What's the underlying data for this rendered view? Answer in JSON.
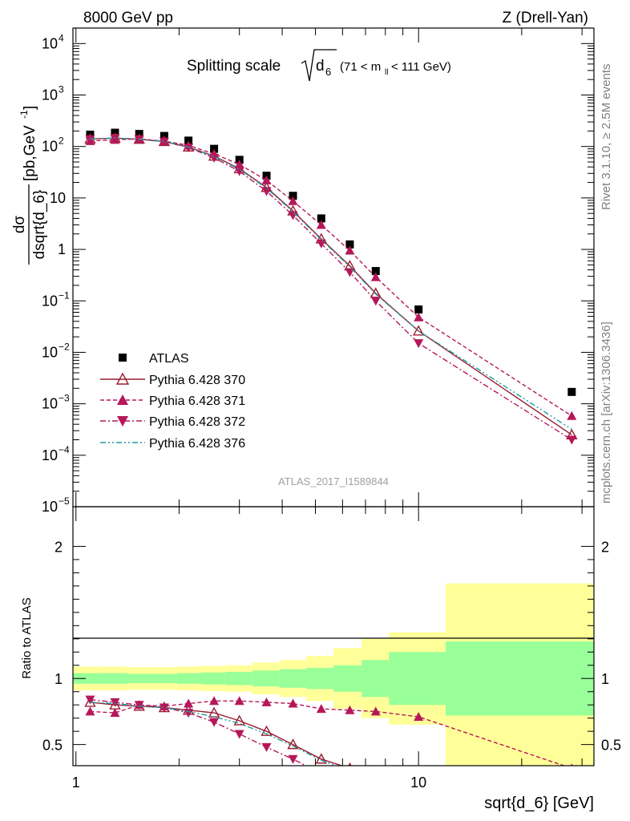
{
  "header": {
    "left": "8000 GeV pp",
    "right": "Z (Drell-Yan)"
  },
  "side_labels": {
    "rivet": "Rivet 3.1.10, ≥ 2.5M events",
    "mcplots": "mcplots.cern.ch [arXiv:1306.3436]"
  },
  "watermark": "ATLAS_2017_I1589844",
  "chart_data": [
    {
      "type": "scatter",
      "title_main": "Splitting scale",
      "title_sym": "d",
      "title_sub": "6",
      "title_range": "(71 < m",
      "title_range_sub": "ll",
      "title_range_end": " < 111 GeV)",
      "ylabel_num": "dσ",
      "ylabel_den": "dsqrt{d_6}",
      "ylabel_unit": "[pb,GeV",
      "ylabel_unit_sup": "-1",
      "ylabel_unit_end": "]",
      "x_scale": "log",
      "y_scale": "log",
      "xlim": [
        0.98,
        32.5
      ],
      "ylim": [
        1e-05,
        20000
      ],
      "yticks": [
        {
          "v": 1e-05,
          "base": "10",
          "exp": "−5"
        },
        {
          "v": 0.0001,
          "base": "10",
          "exp": "−4"
        },
        {
          "v": 0.001,
          "base": "10",
          "exp": "−3"
        },
        {
          "v": 0.01,
          "base": "10",
          "exp": "−2"
        },
        {
          "v": 0.1,
          "base": "10",
          "exp": "−1"
        },
        {
          "v": 1,
          "base": "1",
          "exp": ""
        },
        {
          "v": 10,
          "base": "10",
          "exp": ""
        },
        {
          "v": 100,
          "base": "10",
          "exp": "2"
        },
        {
          "v": 1000,
          "base": "10",
          "exp": "3"
        },
        {
          "v": 10000,
          "base": "10",
          "exp": "4"
        }
      ],
      "legend_position": "lower-left",
      "series": [
        {
          "name": "ATLAS",
          "style": "data",
          "color": "#000000",
          "marker": "square",
          "x": [
            1.1,
            1.3,
            1.53,
            1.81,
            2.13,
            2.53,
            3.0,
            3.6,
            4.3,
            5.2,
            6.3,
            7.5,
            10.0,
            28.0
          ],
          "y": [
            170,
            185,
            175,
            160,
            130,
            90,
            55,
            27,
            11,
            4,
            1.25,
            0.38,
            0.068,
            0.0017
          ]
        },
        {
          "name": "Pythia 6.428 370",
          "style": "solid",
          "color": "#9b1c2e",
          "marker": "triangle-up-open",
          "x": [
            1.1,
            1.3,
            1.53,
            1.81,
            2.13,
            2.53,
            3.0,
            3.6,
            4.3,
            5.2,
            6.3,
            7.5,
            10.0,
            28.0
          ],
          "y": [
            140,
            145,
            138,
            125,
            98,
            65,
            37,
            16,
            5.6,
            1.6,
            0.48,
            0.14,
            0.026,
            0.00025
          ]
        },
        {
          "name": "Pythia 6.428 371",
          "style": "dashed",
          "color": "#b5175a",
          "marker": "triangle-up",
          "x": [
            1.1,
            1.3,
            1.53,
            1.81,
            2.13,
            2.53,
            3.0,
            3.6,
            4.3,
            5.2,
            6.3,
            7.5,
            10.0,
            28.0
          ],
          "y": [
            128,
            135,
            140,
            127,
            105,
            72,
            45,
            22,
            8.7,
            3.0,
            0.95,
            0.29,
            0.048,
            0.00058
          ]
        },
        {
          "name": "Pythia 6.428 372",
          "style": "dashdot",
          "color": "#b5175a",
          "marker": "triangle-down",
          "x": [
            1.1,
            1.3,
            1.53,
            1.81,
            2.13,
            2.53,
            3.0,
            3.6,
            4.3,
            5.2,
            6.3,
            7.5,
            10.0,
            28.0
          ],
          "y": [
            138,
            146,
            138,
            124,
            95,
            60,
            33,
            13.5,
            4.6,
            1.3,
            0.36,
            0.1,
            0.015,
            0.0002
          ]
        },
        {
          "name": "Pythia 6.428 376",
          "style": "dashdotdot",
          "color": "#1b9ea0",
          "marker": "none",
          "x": [
            1.1,
            1.3,
            1.53,
            1.81,
            2.13,
            2.53,
            3.0,
            3.6,
            4.3,
            5.2,
            6.3,
            7.5,
            10.0,
            28.0
          ],
          "y": [
            140,
            146,
            138,
            125,
            97,
            64,
            36,
            15.5,
            5.4,
            1.55,
            0.46,
            0.135,
            0.026,
            0.00032
          ]
        }
      ]
    },
    {
      "type": "scatter",
      "ylabel": "Ratio to ATLAS",
      "xlabel": "sqrt{d_6} [GeV]",
      "x_scale": "log",
      "xlim": [
        0.98,
        32.5
      ],
      "ylim": [
        0.34,
        2.3
      ],
      "yticks": [
        0.5,
        1,
        2
      ],
      "xticks": [
        1,
        10
      ],
      "bands": {
        "edges": [
          0.98,
          1.2,
          1.42,
          1.67,
          1.97,
          2.32,
          2.74,
          3.27,
          3.92,
          4.7,
          5.65,
          6.82,
          8.2,
          12.0,
          32.5
        ],
        "inner": [
          0.04,
          0.04,
          0.035,
          0.035,
          0.04,
          0.045,
          0.05,
          0.06,
          0.07,
          0.08,
          0.1,
          0.14,
          0.2,
          0.28
        ],
        "outer": [
          0.09,
          0.09,
          0.085,
          0.085,
          0.09,
          0.095,
          0.1,
          0.12,
          0.14,
          0.17,
          0.23,
          0.3,
          0.35,
          0.72
        ],
        "inner_color": "#99ff99",
        "outer_color": "#ffff99"
      },
      "series": [
        {
          "name": "Pythia 6.428 370",
          "color": "#9b1c2e",
          "x": [
            1.1,
            1.3,
            1.53,
            1.81,
            2.13,
            2.53,
            3.0,
            3.6,
            4.3,
            5.2,
            6.3
          ],
          "y": [
            0.82,
            0.8,
            0.79,
            0.78,
            0.76,
            0.74,
            0.68,
            0.6,
            0.5,
            0.39,
            0.32
          ]
        },
        {
          "name": "Pythia 6.428 371",
          "color": "#b5175a",
          "x": [
            1.1,
            1.3,
            1.53,
            1.81,
            2.13,
            2.53,
            3.0,
            3.6,
            4.3,
            5.2,
            6.3,
            7.5,
            10.0,
            28.0
          ],
          "y": [
            0.75,
            0.74,
            0.8,
            0.79,
            0.81,
            0.83,
            0.83,
            0.82,
            0.81,
            0.77,
            0.76,
            0.75,
            0.71,
            0.32
          ]
        },
        {
          "name": "Pythia 6.428 372",
          "color": "#b5175a",
          "x": [
            1.1,
            1.3,
            1.53,
            1.81,
            2.13,
            2.53,
            3.0,
            3.6,
            4.3,
            5.2
          ],
          "y": [
            0.84,
            0.82,
            0.8,
            0.78,
            0.74,
            0.67,
            0.58,
            0.48,
            0.39,
            0.28
          ]
        },
        {
          "name": "Pythia 6.428 376",
          "color": "#1b9ea0",
          "x": [
            1.1,
            1.3,
            1.53,
            1.81,
            2.13,
            2.53,
            3.0,
            3.6,
            4.3,
            5.2,
            6.3
          ],
          "y": [
            0.82,
            0.81,
            0.79,
            0.78,
            0.75,
            0.71,
            0.66,
            0.58,
            0.49,
            0.38,
            0.3
          ]
        }
      ]
    }
  ]
}
